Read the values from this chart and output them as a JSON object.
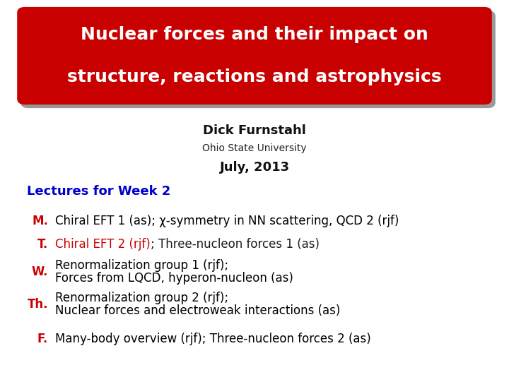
{
  "bg_color": "#ffffff",
  "title_box_color": "#c80000",
  "title_box_shadow_color": "#999999",
  "title_text_line1": "Nuclear forces and their impact on",
  "title_text_line2": "structure, reactions and astrophysics",
  "title_text_color": "#ffffff",
  "title_fontsize": 18,
  "author": "Dick Furnstahl",
  "author_fontsize": 13,
  "affiliation": "Ohio State University",
  "affiliation_fontsize": 10,
  "date": "July, 2013",
  "date_fontsize": 13,
  "section_label": "Lectures for Week 2",
  "section_label_color": "#0000cc",
  "section_fontsize": 13,
  "items": [
    {
      "day": "M.",
      "day_color": "#cc0000",
      "text": "Chiral EFT 1 (as); χ-symmetry in NN scattering, QCD 2 (rjf)",
      "text_color": "#000000",
      "is_two_line": false,
      "mixed_color": false
    },
    {
      "day": "T.",
      "day_color": "#cc0000",
      "text_parts": [
        {
          "text": "Chiral EFT 2 (rjf)",
          "color": "#cc0000"
        },
        {
          "text": "; Three-nucleon forces 1 (as)",
          "color": "#1a1a1a"
        }
      ],
      "is_two_line": false,
      "mixed_color": true
    },
    {
      "day": "W.",
      "day_color": "#cc0000",
      "text_line1": "Renormalization group 1 (rjf);",
      "text_line2": "Forces from LQCD, hyperon-nucleon (as)",
      "text_color": "#000000",
      "is_two_line": true,
      "mixed_color": false
    },
    {
      "day": "Th.",
      "day_color": "#cc0000",
      "text_line1": "Renormalization group 2 (rjf);",
      "text_line2": "Nuclear forces and electroweak interactions (as)",
      "text_color": "#000000",
      "is_two_line": true,
      "mixed_color": false
    },
    {
      "day": "F.",
      "day_color": "#cc0000",
      "text": "Many-body overview (rjf); Three-nucleon forces 2 (as)",
      "text_color": "#000000",
      "is_two_line": false,
      "mixed_color": false
    }
  ],
  "item_fontsize": 12,
  "day_fontsize": 12
}
